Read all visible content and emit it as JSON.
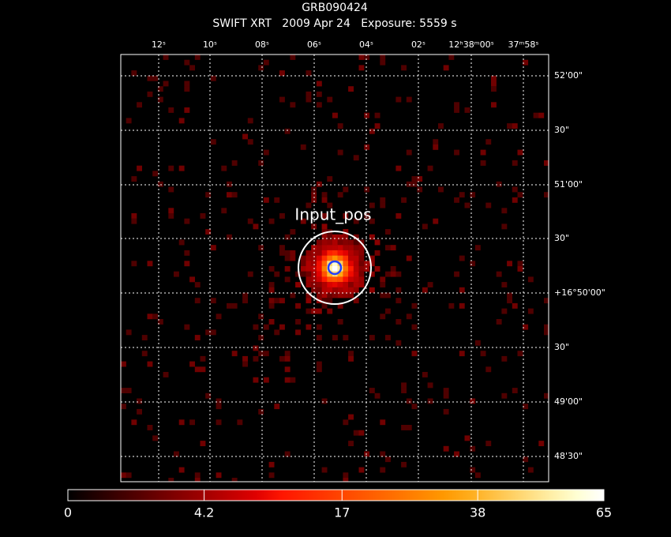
{
  "header": {
    "title": "GRB090424",
    "subtitle": "SWIFT XRT   2009 Apr 24   Exposure: 5559 s"
  },
  "image": {
    "ra_ticks": [
      "12ˢ",
      "10ˢ",
      "08ˢ",
      "06ˢ",
      "04ˢ",
      "02ˢ",
      "12ʰ38ᵐ00ˢ",
      "37ᵐ58ˢ"
    ],
    "dec_ticks": [
      "52'00\"",
      "30\"",
      "51'00\"",
      "30\"",
      "+16°50'00\"",
      "30\"",
      "49'00\"",
      "48'30\""
    ],
    "source_label": "Input_pos"
  },
  "colorbar": {
    "scale": "sqrt",
    "lim": [
      0,
      65
    ],
    "ticks": [
      0,
      4.2,
      17,
      38,
      65
    ]
  }
}
